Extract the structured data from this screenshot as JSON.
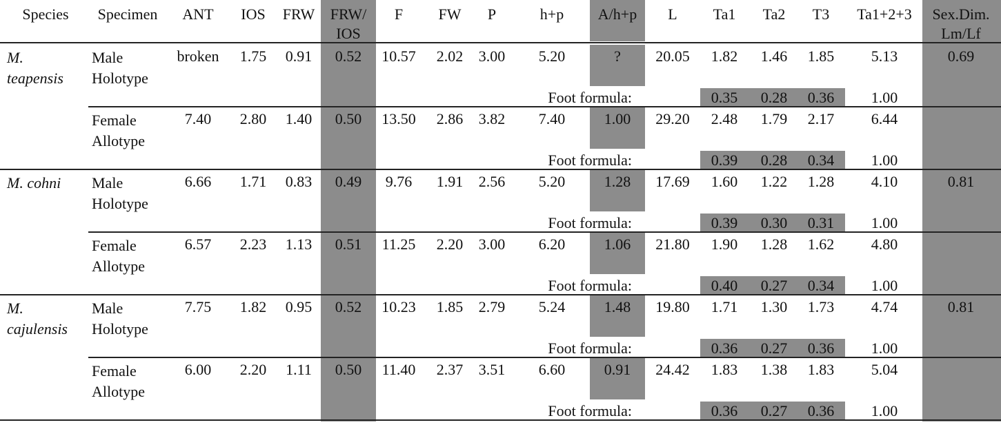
{
  "table": {
    "columns": [
      "Species",
      "Specimen",
      "ANT",
      "IOS",
      "FRW",
      [
        "FRW/",
        "IOS"
      ],
      "F",
      "FW",
      "P",
      "h+p",
      "A/h+p",
      "L",
      "Ta1",
      "Ta2",
      "T3",
      "Ta1+2+3",
      [
        "Sex.Dim.",
        "Lm/Lf"
      ]
    ],
    "groups": [
      {
        "species": "M. teapensis",
        "sex_dim": "0.69",
        "specimens": [
          {
            "specimen": "Male Holotype",
            "values": [
              "broken",
              "1.75",
              "0.91",
              "0.52",
              "10.57",
              "2.02",
              "3.00",
              "5.20",
              "?",
              "20.05",
              "1.82",
              "1.46",
              "1.85",
              "5.13"
            ],
            "foot_label": "Foot formula:",
            "foot": [
              "0.35",
              "0.28",
              "0.36",
              "1.00"
            ]
          },
          {
            "specimen": "Female Allotype",
            "values": [
              "7.40",
              "2.80",
              "1.40",
              "0.50",
              "13.50",
              "2.86",
              "3.82",
              "7.40",
              "1.00",
              "29.20",
              "2.48",
              "1.79",
              "2.17",
              "6.44"
            ],
            "foot_label": "Foot formula:",
            "foot": [
              "0.39",
              "0.28",
              "0.34",
              "1.00"
            ]
          }
        ]
      },
      {
        "species": "M. cohni",
        "sex_dim": "0.81",
        "specimens": [
          {
            "specimen": "Male Holotype",
            "values": [
              "6.66",
              "1.71",
              "0.83",
              "0.49",
              "9.76",
              "1.91",
              "2.56",
              "5.20",
              "1.28",
              "17.69",
              "1.60",
              "1.22",
              "1.28",
              "4.10"
            ],
            "foot_label": "Foot formula:",
            "foot": [
              "0.39",
              "0.30",
              "0.31",
              "1.00"
            ]
          },
          {
            "specimen": "Female Allotype",
            "values": [
              "6.57",
              "2.23",
              "1.13",
              "0.51",
              "11.25",
              "2.20",
              "3.00",
              "6.20",
              "1.06",
              "21.80",
              "1.90",
              "1.28",
              "1.62",
              "4.80"
            ],
            "foot_label": "Foot formula:",
            "foot": [
              "0.40",
              "0.27",
              "0.34",
              "1.00"
            ]
          }
        ]
      },
      {
        "species": "M. cajulensis",
        "sex_dim": "0.81",
        "specimens": [
          {
            "specimen": "Male Holotype",
            "values": [
              "7.75",
              "1.82",
              "0.95",
              "0.52",
              "10.23",
              "1.85",
              "2.79",
              "5.24",
              "1.48",
              "19.80",
              "1.71",
              "1.30",
              "1.73",
              "4.74"
            ],
            "foot_label": "Foot formula:",
            "foot": [
              "0.36",
              "0.27",
              "0.36",
              "1.00"
            ]
          },
          {
            "specimen": "Female Allotype",
            "values": [
              "6.00",
              "2.20",
              "1.11",
              "0.50",
              "11.40",
              "2.37",
              "3.51",
              "6.60",
              "0.91",
              "24.42",
              "1.83",
              "1.38",
              "1.83",
              "5.04"
            ],
            "foot_label": "Foot formula:",
            "foot": [
              "0.36",
              "0.27",
              "0.36",
              "1.00"
            ]
          }
        ]
      }
    ]
  }
}
